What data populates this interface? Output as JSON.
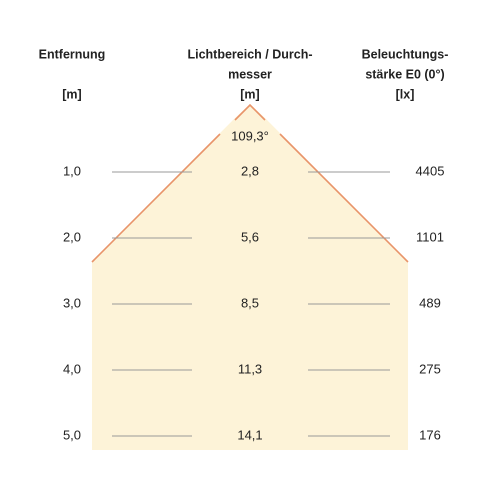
{
  "header": {
    "distance": {
      "lines": [
        "Entfernung"
      ],
      "unit": "[m]"
    },
    "diameter": {
      "lines": [
        "Lichtbereich / Durch-",
        "messer"
      ],
      "unit": "[m]"
    },
    "illuminance": {
      "lines": [
        "Beleuchtungs-",
        "stärke E0 (0°)"
      ],
      "unit": "[lx]"
    }
  },
  "angle": "109,3°",
  "rows": [
    [
      "1,0",
      "2,8",
      "4405"
    ],
    [
      "2,0",
      "5,6",
      "1101"
    ],
    [
      "3,0",
      "8,5",
      "489"
    ],
    [
      "4,0",
      "11,3",
      "275"
    ],
    [
      "5,0",
      "14,1",
      "176"
    ]
  ]
}
